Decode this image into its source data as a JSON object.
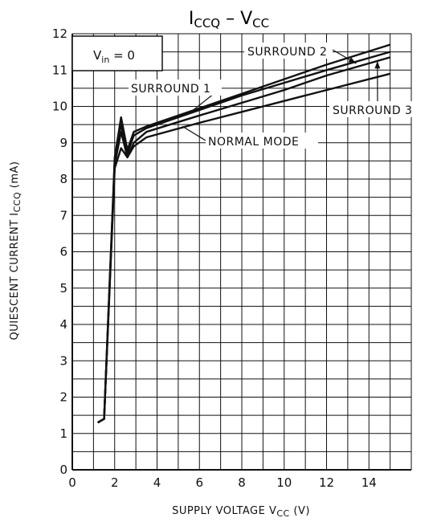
{
  "chart_data": {
    "type": "line",
    "title_main": [
      "I",
      " – V"
    ],
    "title_subscripts": [
      "CCQ",
      "CC"
    ],
    "xlabel": {
      "text": "SUPPLY VOLTAGE   V",
      "subscript": "CC",
      "unit": "   (V)"
    },
    "ylabel": {
      "text": "QUIESCENT CURRENT   I",
      "subscript": "CCQ",
      "unit": "   (mA)"
    },
    "xlim": [
      0,
      16
    ],
    "ylim": [
      0,
      12
    ],
    "x_ticks": [
      "0",
      "2",
      "4",
      "6",
      "8",
      "10",
      "12",
      "14"
    ],
    "y_ticks": [
      "0",
      "1",
      "2",
      "3",
      "4",
      "5",
      "6",
      "7",
      "8",
      "9",
      "10",
      "11",
      "12"
    ],
    "grid": true,
    "condition_box": {
      "text": "V",
      "subscript": "in",
      "suffix": " = 0"
    },
    "annotations": [
      {
        "label": "SURROUND 2",
        "series_index": 0
      },
      {
        "label": "SURROUND 1",
        "series_index": 1
      },
      {
        "label": "SURROUND 3",
        "series_index": 2
      },
      {
        "label": "NORMAL MODE",
        "series_index": 3
      }
    ],
    "series": [
      {
        "name": "SURROUND 2",
        "x": [
          1.2,
          1.5,
          2.0,
          2.3,
          2.6,
          2.9,
          3.5,
          6,
          8,
          10,
          12,
          15
        ],
        "y": [
          1.3,
          1.4,
          8.6,
          9.7,
          8.8,
          9.3,
          9.45,
          9.95,
          10.35,
          10.75,
          11.15,
          11.7
        ]
      },
      {
        "name": "SURROUND 1",
        "x": [
          1.2,
          1.5,
          2.0,
          2.3,
          2.6,
          2.9,
          3.5,
          6,
          8,
          10,
          12,
          15
        ],
        "y": [
          1.3,
          1.4,
          8.5,
          9.5,
          8.7,
          9.2,
          9.4,
          9.9,
          10.3,
          10.65,
          11.0,
          11.5
        ]
      },
      {
        "name": "SURROUND 3",
        "x": [
          1.2,
          1.5,
          2.0,
          2.3,
          2.6,
          2.9,
          3.5,
          6,
          8,
          10,
          12,
          15
        ],
        "y": [
          1.3,
          1.4,
          8.4,
          9.3,
          8.6,
          9.0,
          9.3,
          9.75,
          10.1,
          10.45,
          10.85,
          11.35
        ]
      },
      {
        "name": "NORMAL MODE",
        "x": [
          1.2,
          1.5,
          2.0,
          2.3,
          2.6,
          2.9,
          3.5,
          6,
          8,
          10,
          12,
          15
        ],
        "y": [
          1.3,
          1.4,
          8.3,
          8.85,
          8.6,
          8.9,
          9.15,
          9.55,
          9.85,
          10.15,
          10.45,
          10.9
        ]
      }
    ]
  }
}
